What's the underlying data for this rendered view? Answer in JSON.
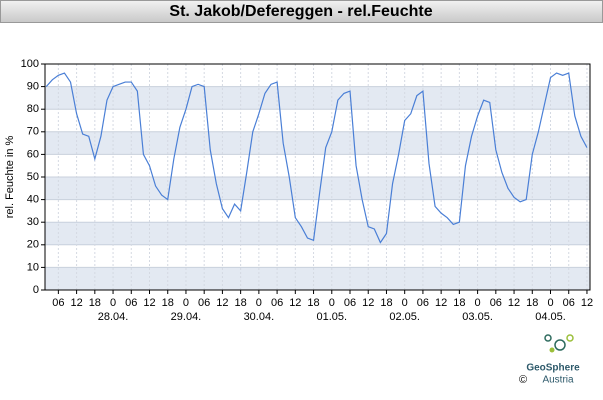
{
  "chart_data": {
    "type": "line",
    "title": "St. Jakob/Defereggen - rel.Feuchte",
    "y_label": "rel. Feuchte in %",
    "grid": true,
    "series": [
      {
        "color": "#4a7fd6",
        "x": [
          2,
          4,
          6,
          8,
          10,
          12,
          14,
          16,
          18,
          20,
          22,
          24,
          26,
          28,
          30,
          32,
          34,
          36,
          38,
          40,
          42,
          44,
          46,
          48,
          50,
          52,
          54,
          56,
          58,
          60,
          62,
          64,
          66,
          68,
          70,
          72,
          74,
          76,
          78,
          80,
          82,
          84,
          86,
          88,
          90,
          92,
          94,
          96,
          98,
          100,
          102,
          104,
          106,
          108,
          110,
          112,
          114,
          116,
          118,
          120,
          122,
          124,
          126,
          128,
          130,
          132,
          134,
          136,
          138,
          140,
          142,
          144,
          146,
          148,
          150,
          152,
          154,
          156,
          158,
          160,
          162,
          164,
          166,
          168,
          170,
          172,
          174,
          176,
          178,
          180
        ],
        "values": [
          90,
          93,
          95,
          96,
          92,
          78,
          69,
          68,
          58,
          68,
          84,
          90,
          91,
          92,
          92,
          88,
          60,
          55,
          46,
          42,
          40,
          58,
          72,
          80,
          90,
          91,
          90,
          62,
          47,
          36,
          32,
          38,
          35,
          52,
          70,
          78,
          87,
          91,
          92,
          65,
          50,
          32,
          28,
          23,
          22,
          43,
          63,
          70,
          84,
          87,
          88,
          55,
          40,
          28,
          27,
          21,
          25,
          47,
          60,
          75,
          78,
          86,
          88,
          56,
          37,
          34,
          32,
          29,
          30,
          55,
          68,
          77,
          84,
          83,
          62,
          52,
          45,
          41,
          39,
          40,
          60,
          70,
          82,
          94,
          96,
          95,
          96,
          77,
          68,
          63
        ]
      }
    ],
    "xlim": [
      1.6,
      181
    ],
    "xticks": [
      {
        "value": 6,
        "label": "06"
      },
      12,
      18,
      {
        "value": 24,
        "label": "0"
      },
      {
        "value": 30,
        "label": "06"
      },
      {
        "value": 36,
        "label": "12"
      },
      {
        "value": 42,
        "label": "18"
      },
      {
        "value": 48,
        "label": "0"
      },
      {
        "value": 54,
        "label": "06"
      },
      {
        "value": 60,
        "label": "12"
      },
      {
        "value": 66,
        "label": "18"
      },
      {
        "value": 72,
        "label": "0"
      },
      {
        "value": 78,
        "label": "06"
      },
      {
        "value": 84,
        "label": "12"
      },
      {
        "value": 90,
        "label": "18"
      },
      {
        "value": 96,
        "label": "0"
      },
      {
        "value": 102,
        "label": "06"
      },
      {
        "value": 108,
        "label": "12"
      },
      {
        "value": 114,
        "label": "18"
      },
      {
        "value": 120,
        "label": "0"
      },
      {
        "value": 126,
        "label": "06"
      },
      {
        "value": 132,
        "label": "12"
      },
      {
        "value": 138,
        "label": "18"
      },
      {
        "value": 144,
        "label": "0"
      },
      {
        "value": 150,
        "label": "06"
      },
      {
        "value": 156,
        "label": "12"
      },
      {
        "value": 162,
        "label": "18"
      },
      {
        "value": 168,
        "label": "0"
      },
      {
        "value": 174,
        "label": "06"
      },
      {
        "value": 180,
        "label": "12"
      }
    ],
    "date_labels": [
      {
        "value": 24,
        "label": "28.04."
      },
      {
        "value": 48,
        "label": "29.04."
      },
      {
        "value": 72,
        "label": "30.04."
      },
      {
        "value": 96,
        "label": "01.05."
      },
      {
        "value": 120,
        "label": "02.05."
      },
      {
        "value": 144,
        "label": "03.05."
      },
      {
        "value": 168,
        "label": "04.05."
      }
    ],
    "ylim": [
      0,
      100
    ],
    "yticks": [
      0,
      10,
      20,
      30,
      40,
      50,
      60,
      70,
      80,
      90,
      100
    ]
  },
  "branding": {
    "name": "GeoSphere",
    "sub": "Austria",
    "copyright": "©"
  }
}
